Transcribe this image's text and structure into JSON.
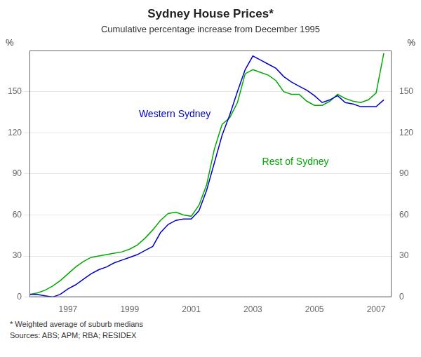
{
  "chart_data": {
    "type": "line",
    "title": "Sydney House Prices*",
    "subtitle": "Cumulative percentage increase from December 1995",
    "ylabel": "%",
    "y2label": "%",
    "footnotes": [
      "*  Weighted average of suburb medians",
      "Sources: ABS; APM; RBA; RESIDEX"
    ],
    "x": [
      1995.75,
      1996.0,
      1996.25,
      1996.5,
      1996.75,
      1997.0,
      1997.25,
      1997.5,
      1997.75,
      1998.0,
      1998.25,
      1998.5,
      1998.75,
      1999.0,
      1999.25,
      1999.5,
      1999.75,
      2000.0,
      2000.25,
      2000.5,
      2000.75,
      2001.0,
      2001.25,
      2001.5,
      2001.75,
      2002.0,
      2002.25,
      2002.5,
      2002.75,
      2003.0,
      2003.25,
      2003.5,
      2003.75,
      2004.0,
      2004.25,
      2004.5,
      2004.75,
      2005.0,
      2005.25,
      2005.5,
      2005.75,
      2006.0,
      2006.25,
      2006.5,
      2006.75,
      2007.0,
      2007.25
    ],
    "series": [
      {
        "name": "Western Sydney",
        "color": "#0000CC",
        "values": [
          2,
          2,
          1,
          0,
          2,
          6,
          9,
          13,
          17,
          20,
          22,
          25,
          27,
          29,
          31,
          34,
          37,
          47,
          53,
          56,
          57,
          57,
          63,
          78,
          98,
          118,
          133,
          150,
          166,
          176,
          173,
          170,
          167,
          161,
          157,
          154,
          151,
          147,
          142,
          144,
          147,
          142,
          141,
          139,
          139,
          139,
          144
        ]
      },
      {
        "name": "Rest of Sydney",
        "color": "#00AA00",
        "values": [
          2,
          3,
          5,
          8,
          12,
          17,
          22,
          26,
          29,
          30,
          31,
          32,
          33,
          35,
          38,
          43,
          49,
          56,
          61,
          62,
          60,
          59,
          67,
          82,
          108,
          126,
          131,
          142,
          163,
          166,
          164,
          162,
          158,
          150,
          148,
          148,
          143,
          140,
          140,
          143,
          148,
          145,
          143,
          142,
          144,
          149,
          178
        ]
      }
    ],
    "annotations": [
      {
        "text": "Western Sydney",
        "x": 1999.3,
        "y": 130,
        "color": "#0000CC"
      },
      {
        "text": "Rest of Sydney",
        "x": 2003.3,
        "y": 95,
        "color": "#00AA00"
      }
    ],
    "xlim": [
      1995.75,
      2007.5
    ],
    "xticks": [
      1997,
      1999,
      2001,
      2003,
      2005,
      2007
    ],
    "ylim": [
      0,
      180
    ],
    "yticks": [
      0,
      30,
      60,
      90,
      120,
      150
    ],
    "y2lim": [
      0,
      180
    ],
    "y2ticks": [
      0,
      30,
      60,
      90,
      120,
      150
    ],
    "grid": true
  }
}
